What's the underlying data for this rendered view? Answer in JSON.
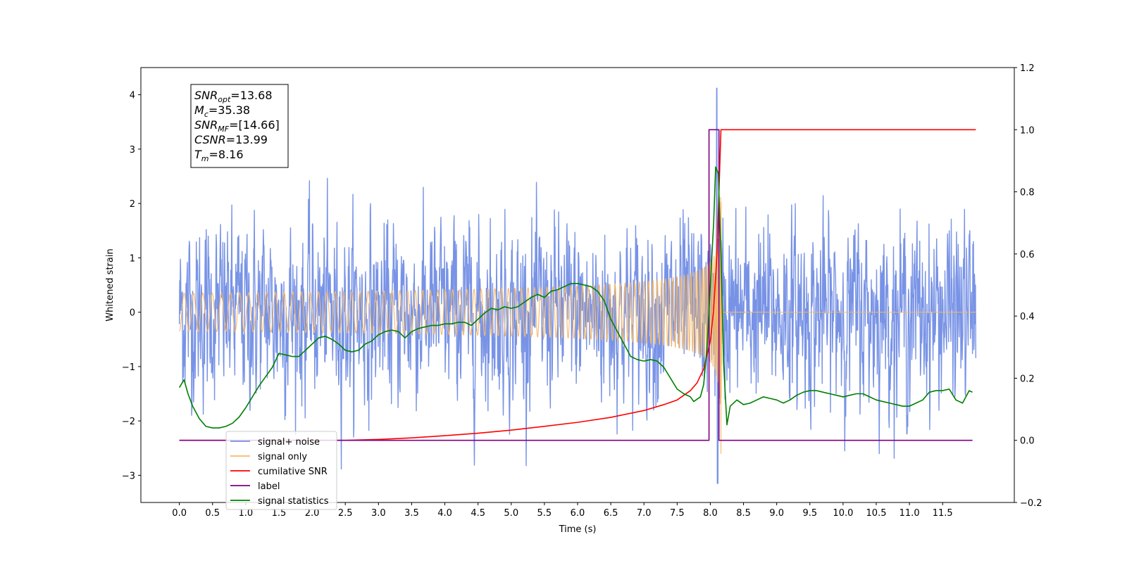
{
  "chart_data": {
    "type": "line",
    "xlabel": "Time (s)",
    "ylabel": "Whitened strain",
    "xlim": [
      -0.58,
      12.58
    ],
    "ylim": [
      -3.5,
      4.5
    ],
    "y2lim": [
      -0.2,
      1.2
    ],
    "x_ticks": [
      "0.0",
      "0.5",
      "1.0",
      "1.5",
      "2.0",
      "2.5",
      "3.0",
      "3.5",
      "4.0",
      "4.5",
      "5.0",
      "5.5",
      "6.0",
      "6.5",
      "7.0",
      "7.5",
      "8.0",
      "8.5",
      "9.0",
      "9.5",
      "10.0",
      "10.5",
      "11.0",
      "11.5"
    ],
    "y_ticks": [
      "4",
      "3",
      "2",
      "1",
      "0",
      "−1",
      "−2",
      "−3"
    ],
    "y2_ticks": [
      "1.2",
      "1.0",
      "0.8",
      "0.6",
      "0.4",
      "0.2",
      "0.0",
      "−0.2"
    ],
    "grid": false,
    "legend_position": "lower-left",
    "annotation": [
      {
        "base": "SNR",
        "sub": "opt",
        "rest": "=13.68"
      },
      {
        "base": "M",
        "sub": "c",
        "rest": "=35.38"
      },
      {
        "base": "SNR",
        "sub": "MF",
        "rest": "=[14.66]"
      },
      {
        "base": "CSNR",
        "sub": "",
        "rest": "=13.99"
      },
      {
        "base": "T",
        "sub": "m",
        "rest": "=8.16"
      }
    ],
    "series": [
      {
        "name": "signal+ noise",
        "color": "#7893e6",
        "axis": "left",
        "kind": "noise",
        "x_range": [
          0.0,
          12.0
        ],
        "sigma": 0.8,
        "y_extremes": [
          -3.15,
          4.12
        ]
      },
      {
        "name": "signal only",
        "color": "#f5b869",
        "axis": "left",
        "kind": "chirp",
        "merger_time": 8.16,
        "peak_amplitude": 2.6
      },
      {
        "name": "cumilative SNR",
        "color": "#ff0000",
        "axis": "right",
        "points": [
          [
            0.0,
            0.0
          ],
          [
            2.5,
            0.0
          ],
          [
            3.0,
            0.003
          ],
          [
            3.5,
            0.008
          ],
          [
            4.0,
            0.015
          ],
          [
            4.5,
            0.023
          ],
          [
            5.0,
            0.033
          ],
          [
            5.5,
            0.045
          ],
          [
            6.0,
            0.058
          ],
          [
            6.5,
            0.074
          ],
          [
            7.0,
            0.096
          ],
          [
            7.3,
            0.115
          ],
          [
            7.5,
            0.13
          ],
          [
            7.7,
            0.16
          ],
          [
            7.8,
            0.185
          ],
          [
            7.9,
            0.23
          ],
          [
            8.0,
            0.32
          ],
          [
            8.05,
            0.42
          ],
          [
            8.1,
            0.6
          ],
          [
            8.13,
            0.8
          ],
          [
            8.16,
            1.0
          ],
          [
            12.0,
            1.0
          ]
        ]
      },
      {
        "name": "label",
        "color": "#800080",
        "axis": "right",
        "points": [
          [
            0.0,
            0.0
          ],
          [
            7.98,
            0.0
          ],
          [
            7.98,
            1.0
          ],
          [
            8.13,
            1.0
          ],
          [
            8.13,
            0.0
          ],
          [
            11.95,
            0.0
          ]
        ]
      },
      {
        "name": "signal statistics",
        "color": "#007f00",
        "axis": "right",
        "points": [
          [
            0.0,
            0.17
          ],
          [
            0.07,
            0.195
          ],
          [
            0.13,
            0.15
          ],
          [
            0.2,
            0.11
          ],
          [
            0.3,
            0.07
          ],
          [
            0.4,
            0.045
          ],
          [
            0.5,
            0.04
          ],
          [
            0.6,
            0.04
          ],
          [
            0.7,
            0.045
          ],
          [
            0.8,
            0.055
          ],
          [
            0.9,
            0.075
          ],
          [
            1.0,
            0.105
          ],
          [
            1.1,
            0.14
          ],
          [
            1.2,
            0.175
          ],
          [
            1.3,
            0.205
          ],
          [
            1.4,
            0.235
          ],
          [
            1.5,
            0.28
          ],
          [
            1.6,
            0.275
          ],
          [
            1.7,
            0.27
          ],
          [
            1.8,
            0.27
          ],
          [
            1.9,
            0.29
          ],
          [
            2.0,
            0.31
          ],
          [
            2.1,
            0.33
          ],
          [
            2.2,
            0.335
          ],
          [
            2.3,
            0.325
          ],
          [
            2.4,
            0.31
          ],
          [
            2.5,
            0.29
          ],
          [
            2.6,
            0.285
          ],
          [
            2.7,
            0.29
          ],
          [
            2.8,
            0.31
          ],
          [
            2.9,
            0.32
          ],
          [
            3.0,
            0.34
          ],
          [
            3.1,
            0.35
          ],
          [
            3.2,
            0.355
          ],
          [
            3.3,
            0.35
          ],
          [
            3.4,
            0.33
          ],
          [
            3.5,
            0.35
          ],
          [
            3.6,
            0.36
          ],
          [
            3.7,
            0.365
          ],
          [
            3.8,
            0.37
          ],
          [
            3.9,
            0.37
          ],
          [
            4.0,
            0.375
          ],
          [
            4.1,
            0.375
          ],
          [
            4.2,
            0.38
          ],
          [
            4.3,
            0.38
          ],
          [
            4.4,
            0.37
          ],
          [
            4.5,
            0.39
          ],
          [
            4.6,
            0.41
          ],
          [
            4.7,
            0.425
          ],
          [
            4.8,
            0.42
          ],
          [
            4.9,
            0.43
          ],
          [
            5.0,
            0.425
          ],
          [
            5.1,
            0.43
          ],
          [
            5.2,
            0.445
          ],
          [
            5.3,
            0.46
          ],
          [
            5.4,
            0.47
          ],
          [
            5.5,
            0.46
          ],
          [
            5.6,
            0.48
          ],
          [
            5.7,
            0.485
          ],
          [
            5.8,
            0.495
          ],
          [
            5.9,
            0.505
          ],
          [
            6.0,
            0.505
          ],
          [
            6.1,
            0.5
          ],
          [
            6.2,
            0.495
          ],
          [
            6.3,
            0.48
          ],
          [
            6.4,
            0.45
          ],
          [
            6.5,
            0.39
          ],
          [
            6.6,
            0.35
          ],
          [
            6.7,
            0.31
          ],
          [
            6.8,
            0.27
          ],
          [
            6.9,
            0.26
          ],
          [
            7.0,
            0.255
          ],
          [
            7.1,
            0.26
          ],
          [
            7.2,
            0.255
          ],
          [
            7.3,
            0.235
          ],
          [
            7.4,
            0.2
          ],
          [
            7.5,
            0.165
          ],
          [
            7.6,
            0.15
          ],
          [
            7.7,
            0.14
          ],
          [
            7.75,
            0.125
          ],
          [
            7.85,
            0.14
          ],
          [
            7.9,
            0.18
          ],
          [
            7.95,
            0.3
          ],
          [
            8.0,
            0.5
          ],
          [
            8.05,
            0.7
          ],
          [
            8.08,
            0.88
          ],
          [
            8.12,
            0.86
          ],
          [
            8.16,
            0.6
          ],
          [
            8.2,
            0.25
          ],
          [
            8.25,
            0.05
          ],
          [
            8.3,
            0.11
          ],
          [
            8.4,
            0.13
          ],
          [
            8.5,
            0.115
          ],
          [
            8.6,
            0.12
          ],
          [
            8.7,
            0.13
          ],
          [
            8.8,
            0.14
          ],
          [
            8.9,
            0.135
          ],
          [
            9.0,
            0.13
          ],
          [
            9.1,
            0.12
          ],
          [
            9.2,
            0.13
          ],
          [
            9.3,
            0.145
          ],
          [
            9.4,
            0.155
          ],
          [
            9.5,
            0.16
          ],
          [
            9.6,
            0.16
          ],
          [
            9.7,
            0.155
          ],
          [
            9.8,
            0.15
          ],
          [
            9.9,
            0.145
          ],
          [
            10.0,
            0.14
          ],
          [
            10.1,
            0.145
          ],
          [
            10.2,
            0.15
          ],
          [
            10.3,
            0.15
          ],
          [
            10.4,
            0.14
          ],
          [
            10.5,
            0.13
          ],
          [
            10.6,
            0.125
          ],
          [
            10.7,
            0.12
          ],
          [
            10.8,
            0.115
          ],
          [
            10.9,
            0.11
          ],
          [
            11.0,
            0.11
          ],
          [
            11.1,
            0.12
          ],
          [
            11.2,
            0.13
          ],
          [
            11.3,
            0.155
          ],
          [
            11.4,
            0.16
          ],
          [
            11.5,
            0.16
          ],
          [
            11.6,
            0.165
          ],
          [
            11.7,
            0.13
          ],
          [
            11.8,
            0.12
          ],
          [
            11.9,
            0.16
          ],
          [
            11.95,
            0.155
          ]
        ]
      }
    ]
  }
}
